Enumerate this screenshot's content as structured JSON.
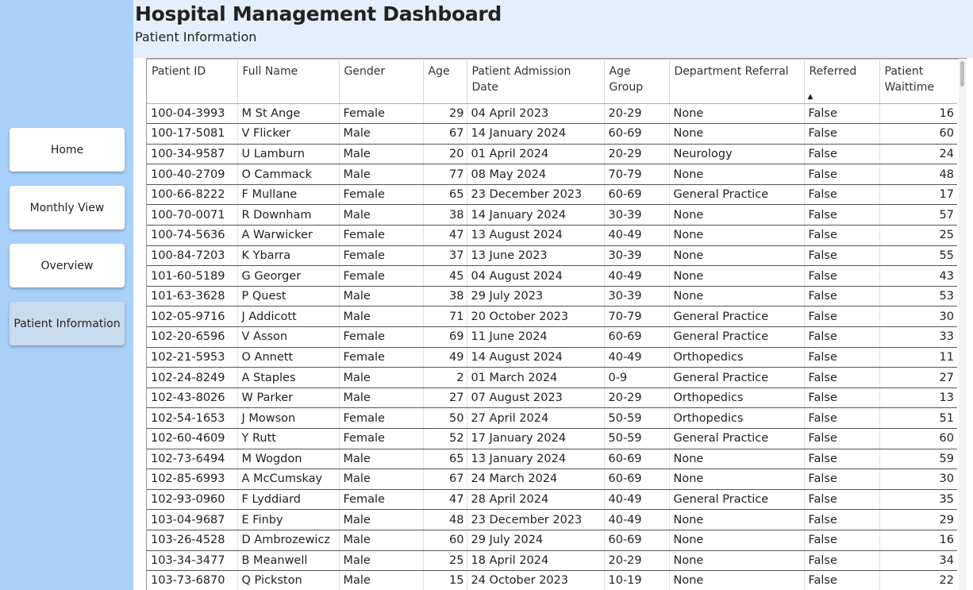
{
  "header": {
    "title": "Hospital Management Dashboard",
    "subtitle": "Patient Information"
  },
  "sidebar": {
    "items": [
      {
        "label": "Home"
      },
      {
        "label": "Monthly View"
      },
      {
        "label": "Overview"
      },
      {
        "label": "Patient Information",
        "active": true
      }
    ]
  },
  "table": {
    "sorted_column": "Referred",
    "sort_direction": "ascending",
    "columns": [
      "Patient ID",
      "Full Name",
      "Gender",
      "Age",
      "Patient Admission Date",
      "Age Group",
      "Department Referral",
      "Referred",
      "Patient Waittime"
    ],
    "rows": [
      [
        "100-04-3993",
        "M St Ange",
        "Female",
        "29",
        "04 April 2023",
        "20-29",
        "None",
        "False",
        "16"
      ],
      [
        "100-17-5081",
        "V Flicker",
        "Male",
        "67",
        "14 January 2024",
        "60-69",
        "None",
        "False",
        "60"
      ],
      [
        "100-34-9587",
        "U Lamburn",
        "Male",
        "20",
        "01 April 2024",
        "20-29",
        "Neurology",
        "False",
        "24"
      ],
      [
        "100-40-2709",
        "O Cammack",
        "Male",
        "77",
        "08 May 2024",
        "70-79",
        "None",
        "False",
        "48"
      ],
      [
        "100-66-8222",
        "F Mullane",
        "Female",
        "65",
        "23 December 2023",
        "60-69",
        "General Practice",
        "False",
        "17"
      ],
      [
        "100-70-0071",
        "R Downham",
        "Male",
        "38",
        "14 January 2024",
        "30-39",
        "None",
        "False",
        "57"
      ],
      [
        "100-74-5636",
        "A Warwicker",
        "Female",
        "47",
        "13 August 2024",
        "40-49",
        "None",
        "False",
        "25"
      ],
      [
        "100-84-7203",
        "K Ybarra",
        "Female",
        "37",
        "13 June 2023",
        "30-39",
        "None",
        "False",
        "55"
      ],
      [
        "101-60-5189",
        "G Georger",
        "Female",
        "45",
        "04 August 2024",
        "40-49",
        "None",
        "False",
        "43"
      ],
      [
        "101-63-3628",
        "P Quest",
        "Male",
        "38",
        "29 July 2023",
        "30-39",
        "None",
        "False",
        "53"
      ],
      [
        "102-05-9716",
        "J Addicott",
        "Male",
        "71",
        "20 October 2023",
        "70-79",
        "General Practice",
        "False",
        "30"
      ],
      [
        "102-20-6596",
        "V Asson",
        "Female",
        "69",
        "11 June 2024",
        "60-69",
        "General Practice",
        "False",
        "33"
      ],
      [
        "102-21-5953",
        "O Annett",
        "Female",
        "49",
        "14 August 2024",
        "40-49",
        "Orthopedics",
        "False",
        "11"
      ],
      [
        "102-24-8249",
        "A Staples",
        "Male",
        "2",
        "01 March 2024",
        "0-9",
        "General Practice",
        "False",
        "27"
      ],
      [
        "102-43-8026",
        "W Parker",
        "Male",
        "27",
        "07 August 2023",
        "20-29",
        "Orthopedics",
        "False",
        "13"
      ],
      [
        "102-54-1653",
        "J Mowson",
        "Female",
        "50",
        "27 April 2024",
        "50-59",
        "Orthopedics",
        "False",
        "51"
      ],
      [
        "102-60-4609",
        "Y Rutt",
        "Female",
        "52",
        "17 January 2024",
        "50-59",
        "General Practice",
        "False",
        "60"
      ],
      [
        "102-73-6494",
        "M Wogdon",
        "Male",
        "65",
        "13 January 2024",
        "60-69",
        "None",
        "False",
        "59"
      ],
      [
        "102-85-6993",
        "A McCumskay",
        "Male",
        "67",
        "24 March 2024",
        "60-69",
        "None",
        "False",
        "30"
      ],
      [
        "102-93-0960",
        "F Lyddiard",
        "Female",
        "47",
        "28 April 2024",
        "40-49",
        "General Practice",
        "False",
        "35"
      ],
      [
        "103-04-9687",
        "E Finby",
        "Male",
        "48",
        "23 December 2023",
        "40-49",
        "None",
        "False",
        "29"
      ],
      [
        "103-26-4528",
        "D Ambrozewicz",
        "Male",
        "60",
        "29 July 2024",
        "60-69",
        "None",
        "False",
        "16"
      ],
      [
        "103-34-3477",
        "B Meanwell",
        "Male",
        "25",
        "18 April 2024",
        "20-29",
        "None",
        "False",
        "34"
      ],
      [
        "103-73-6870",
        "Q Pickston",
        "Male",
        "15",
        "24 October 2023",
        "10-19",
        "None",
        "False",
        "22"
      ]
    ]
  },
  "icons": {
    "sort": "sort-ascending-icon"
  },
  "colors": {
    "sidebar_bg": "#a8d0f8",
    "header_bg": "#e3f0fb",
    "active_nav_bg": "#c9dcee",
    "header_underline": "#7ec3c9"
  }
}
